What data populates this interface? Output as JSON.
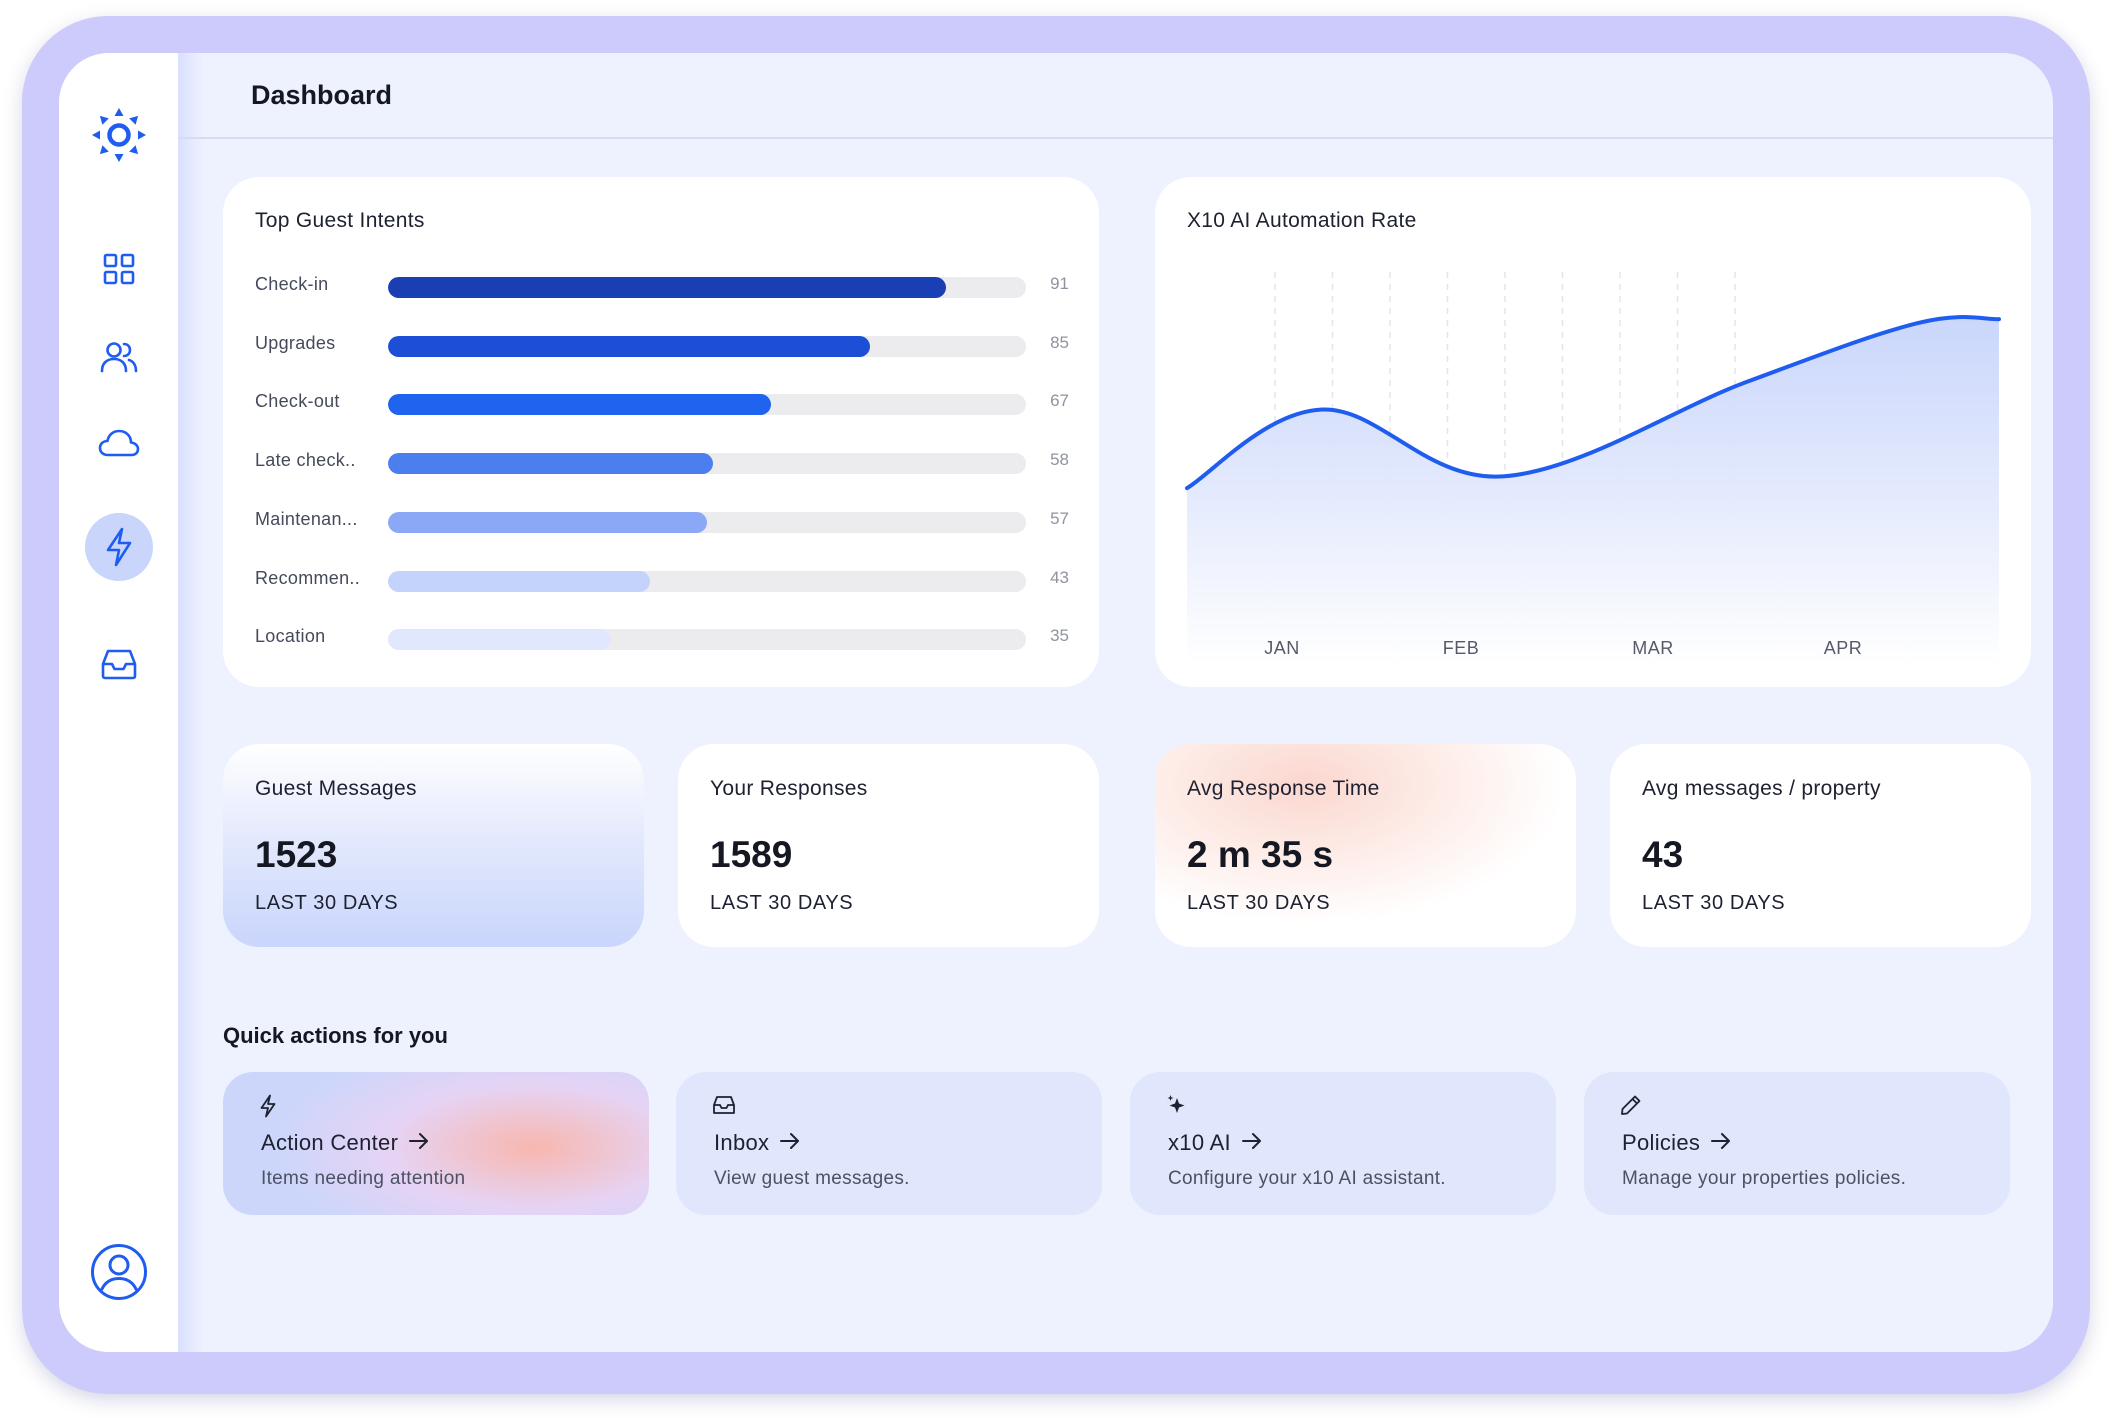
{
  "header": {
    "title": "Dashboard"
  },
  "sidebar": {
    "items": [
      {
        "icon": "sun-logo-icon"
      },
      {
        "icon": "grid-icon"
      },
      {
        "icon": "users-icon"
      },
      {
        "icon": "cloud-icon"
      },
      {
        "icon": "lightning-icon",
        "active": true
      },
      {
        "icon": "inbox-icon"
      },
      {
        "icon": "user-profile-icon"
      }
    ]
  },
  "intents": {
    "title": "Top Guest Intents",
    "items": [
      {
        "label": "Check-in",
        "value": "91",
        "fill": 0.875,
        "color": "#1a3fb5"
      },
      {
        "label": "Upgrades",
        "value": "85",
        "fill": 0.755,
        "color": "#1c4fd6"
      },
      {
        "label": "Check-out",
        "value": "67",
        "fill": 0.6,
        "color": "#1f63ee"
      },
      {
        "label": "Late check..",
        "value": "58",
        "fill": 0.51,
        "color": "#4c7ef0"
      },
      {
        "label": "Maintenan...",
        "value": "57",
        "fill": 0.5,
        "color": "#8aa8f5"
      },
      {
        "label": "Recommen..",
        "value": "43",
        "fill": 0.41,
        "color": "#c4d3fb"
      },
      {
        "label": "Location",
        "value": "35",
        "fill": 0.35,
        "color": "#e1e8fd"
      }
    ]
  },
  "automation": {
    "title": "X10 AI Automation Rate"
  },
  "chart_data": {
    "type": "area",
    "title": "X10 AI Automation Rate",
    "categories": [
      "JAN",
      "FEB",
      "MAR",
      "APR"
    ],
    "x": [
      0,
      0.75,
      1.75,
      3.1,
      4.05,
      4.5
    ],
    "series": [
      {
        "values": [
          45,
          65,
          48,
          72,
          87,
          88
        ]
      }
    ],
    "ylim": [
      0,
      100
    ],
    "xlim": [
      0,
      4.5
    ],
    "grid": "vertical-dashed",
    "colors": {
      "line": "#1f5cf0",
      "fill_top": "#c7d4fb",
      "fill_bottom": "#ffffff"
    }
  },
  "stats": [
    {
      "title": "Guest Messages",
      "value": "1523",
      "period": "LAST 30 DAYS"
    },
    {
      "title": "Your Responses",
      "value": "1589",
      "period": "LAST 30 DAYS"
    },
    {
      "title": "Avg Response Time",
      "value": "2 m 35 s",
      "period": "LAST 30 DAYS"
    },
    {
      "title": "Avg messages / property",
      "value": "43",
      "period": "LAST 30 DAYS"
    }
  ],
  "quick_actions": {
    "heading": "Quick actions for you",
    "items": [
      {
        "icon": "lightning-icon",
        "title": "Action Center",
        "desc": "Items needing attention"
      },
      {
        "icon": "inbox-icon",
        "title": "Inbox",
        "desc": "View guest messages."
      },
      {
        "icon": "sparkle-icon",
        "title": "x10 AI",
        "desc": "Configure your x10 AI assistant."
      },
      {
        "icon": "pencil-icon",
        "title": "Policies",
        "desc": "Manage your properties policies."
      }
    ]
  }
}
